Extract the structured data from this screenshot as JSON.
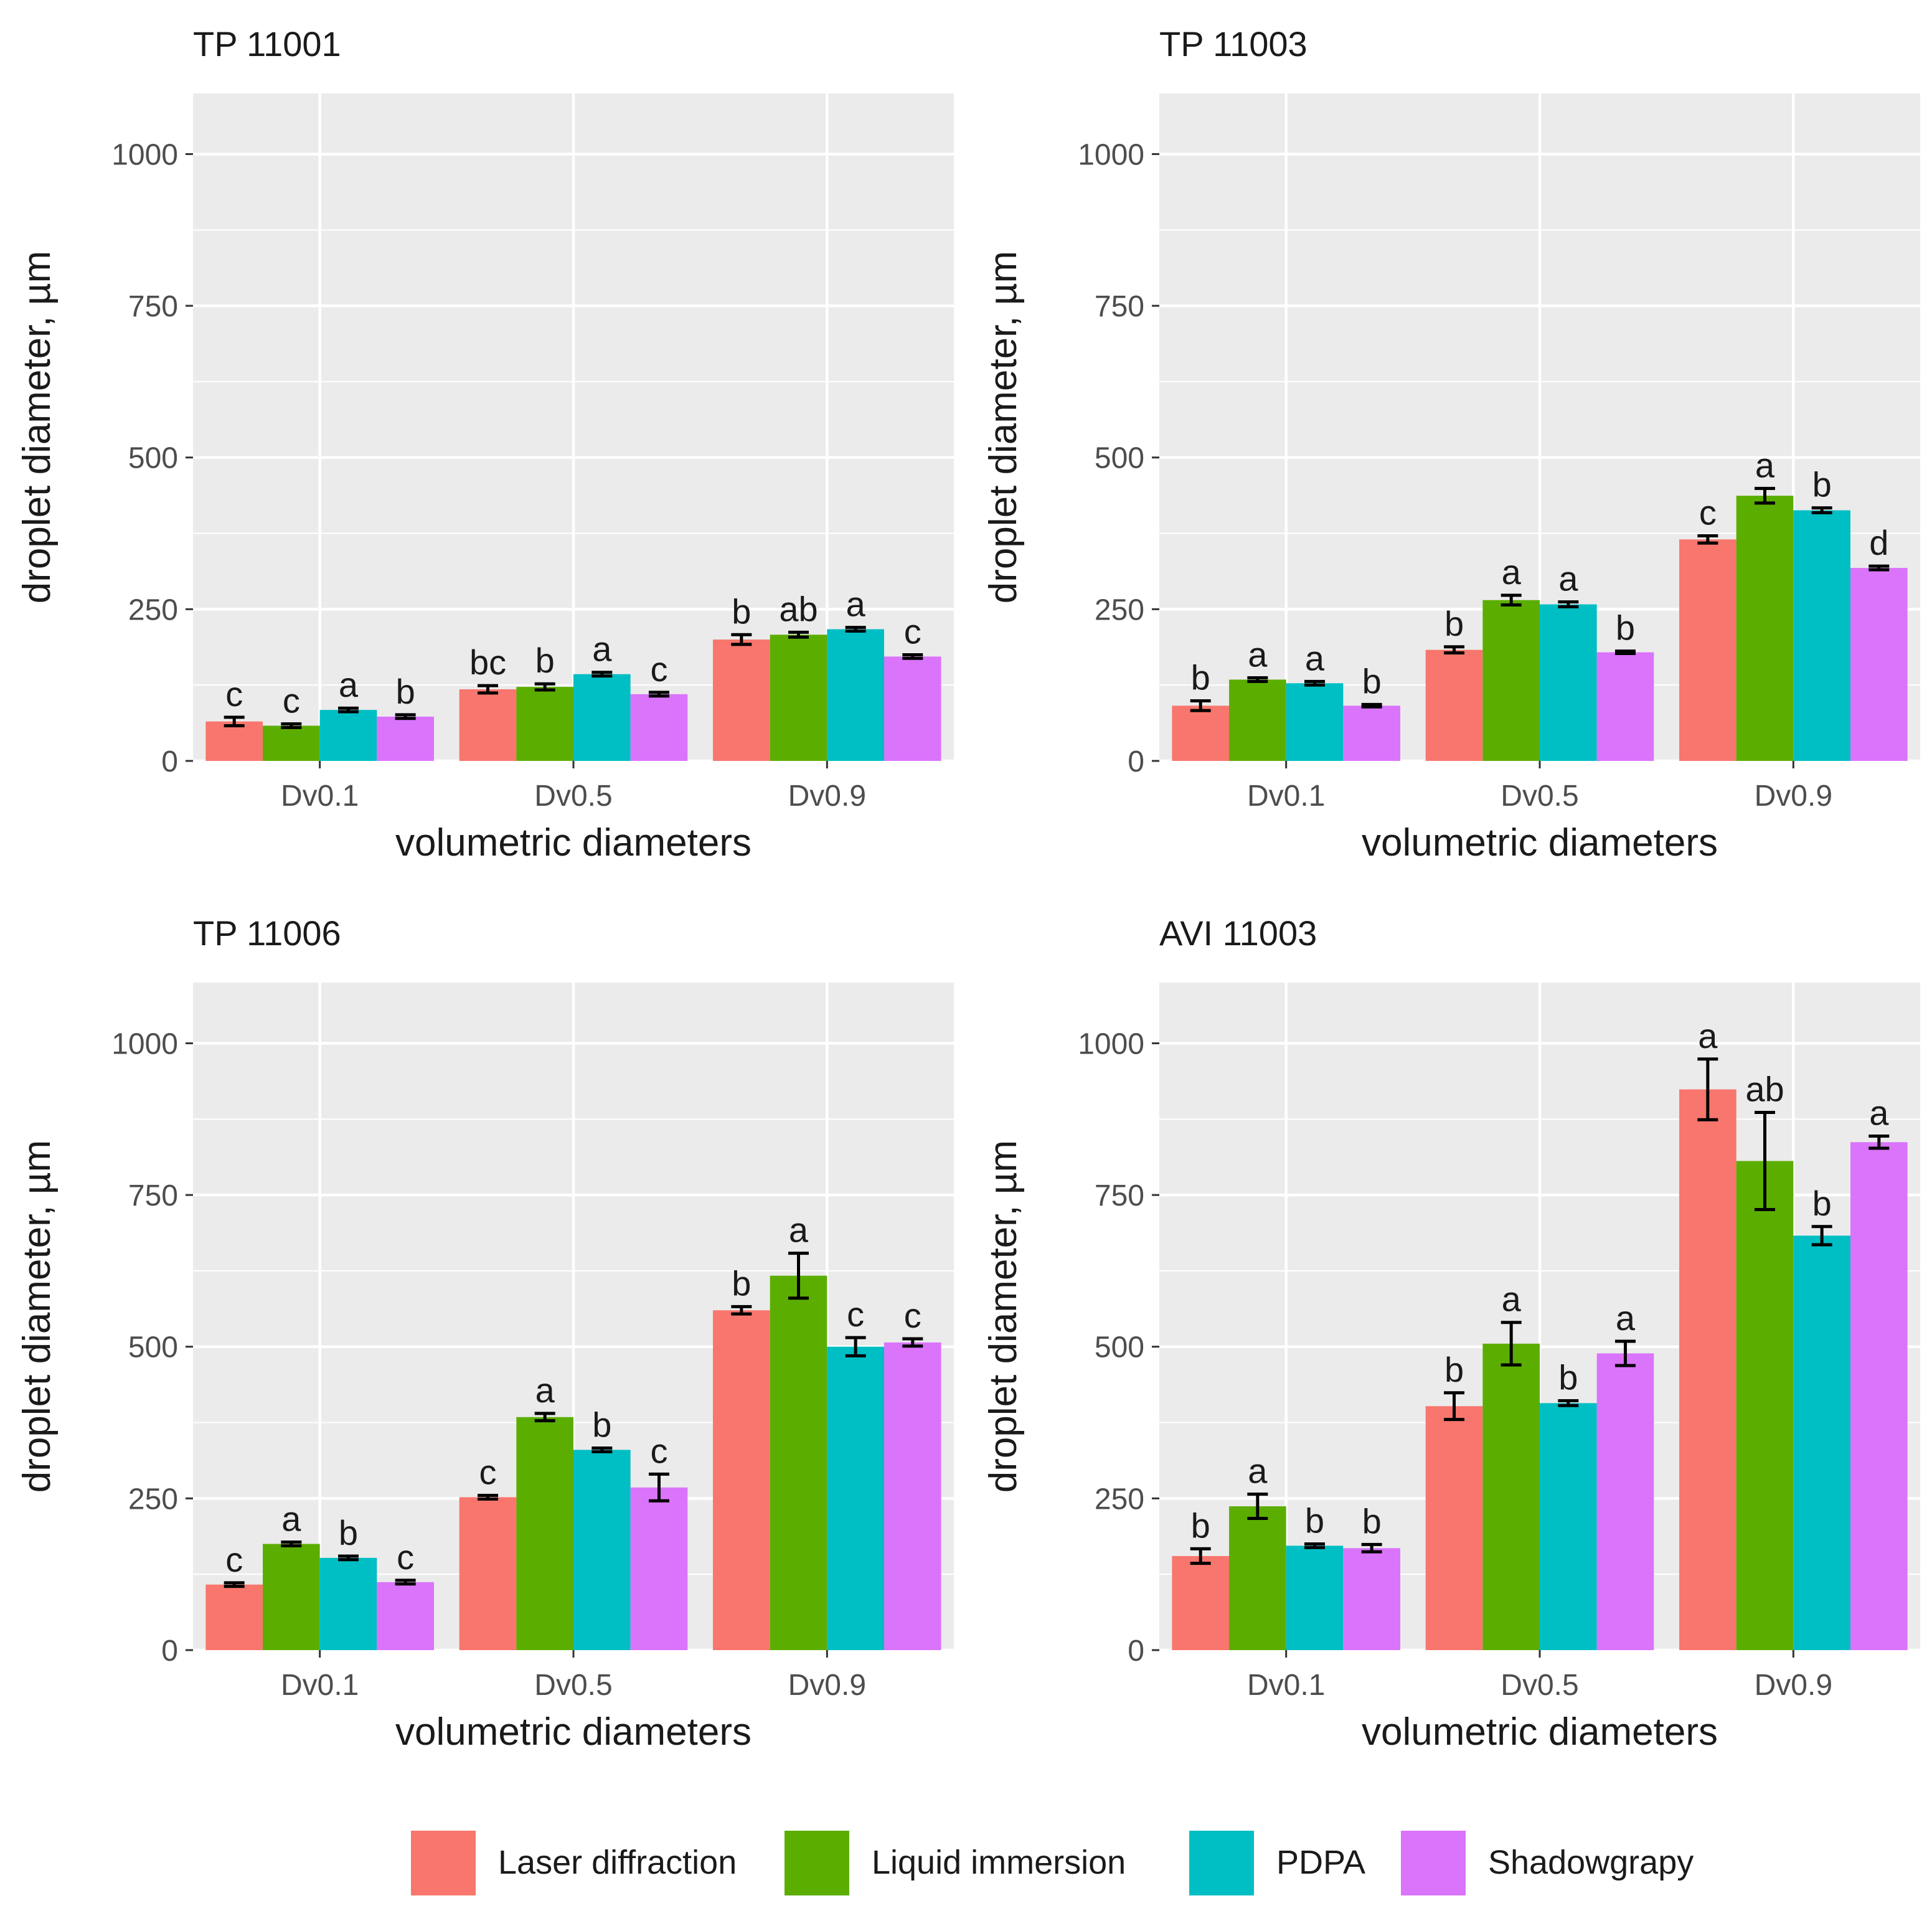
{
  "figure": {
    "colors": {
      "laser_diffraction": "#F8766D",
      "liquid_immersion": "#5BAE00",
      "pdpa": "#00BFC4",
      "shadowgrapy": "#DA74FB",
      "panel_bg": "#EBEBEB",
      "grid": "#FFFFFF",
      "text": "#1A1A1A",
      "tick_text": "#4D4D4D"
    }
  },
  "legend": {
    "items": [
      {
        "label": "Laser diffraction",
        "color": "#F8766D"
      },
      {
        "label": "Liquid immersion",
        "color": "#5BAE00"
      },
      {
        "label": "PDPA",
        "color": "#00BFC4"
      },
      {
        "label": "Shadowgrapy",
        "color": "#DA74FB"
      }
    ]
  },
  "chart_data": [
    {
      "type": "bar",
      "title": "TP 11001",
      "xlabel": "volumetric diameters",
      "ylabel": "droplet diameter, µm",
      "ylim": [
        0,
        1100
      ],
      "yticks": [
        0,
        250,
        500,
        750,
        1000
      ],
      "categories": [
        "Dv0.1",
        "Dv0.5",
        "Dv0.9"
      ],
      "series": [
        {
          "name": "Laser diffraction",
          "values": [
            65,
            118,
            200
          ],
          "errors": [
            7,
            6,
            8
          ],
          "letters": [
            "c",
            "bc",
            "b"
          ]
        },
        {
          "name": "Liquid immersion",
          "values": [
            58,
            122,
            208
          ],
          "errors": [
            3,
            5,
            4
          ],
          "letters": [
            "c",
            "b",
            "ab"
          ]
        },
        {
          "name": "PDPA",
          "values": [
            84,
            143,
            217
          ],
          "errors": [
            3,
            3,
            3
          ],
          "letters": [
            "a",
            "a",
            "a"
          ]
        },
        {
          "name": "Shadowgrapy",
          "values": [
            73,
            110,
            172
          ],
          "errors": [
            3,
            3,
            3
          ],
          "letters": [
            "b",
            "c",
            "c"
          ]
        }
      ]
    },
    {
      "type": "bar",
      "title": "TP 11003",
      "xlabel": "volumetric diameters",
      "ylabel": "droplet diameter, µm",
      "ylim": [
        0,
        1100
      ],
      "yticks": [
        0,
        250,
        500,
        750,
        1000
      ],
      "categories": [
        "Dv0.1",
        "Dv0.5",
        "Dv0.9"
      ],
      "series": [
        {
          "name": "Laser diffraction",
          "values": [
            91,
            183,
            365
          ],
          "errors": [
            8,
            5,
            6
          ],
          "letters": [
            "b",
            "b",
            "c"
          ]
        },
        {
          "name": "Liquid immersion",
          "values": [
            134,
            265,
            437
          ],
          "errors": [
            3,
            8,
            12
          ],
          "letters": [
            "a",
            "a",
            "a"
          ]
        },
        {
          "name": "PDPA",
          "values": [
            128,
            258,
            413
          ],
          "errors": [
            3,
            4,
            4
          ],
          "letters": [
            "a",
            "a",
            "b"
          ]
        },
        {
          "name": "Shadowgrapy",
          "values": [
            91,
            179,
            318
          ],
          "errors": [
            2,
            2,
            3
          ],
          "letters": [
            "b",
            "b",
            "d"
          ]
        }
      ]
    },
    {
      "type": "bar",
      "title": "TP 11006",
      "xlabel": "volumetric diameters",
      "ylabel": "droplet diameter, µm",
      "ylim": [
        0,
        1100
      ],
      "yticks": [
        0,
        250,
        500,
        750,
        1000
      ],
      "categories": [
        "Dv0.1",
        "Dv0.5",
        "Dv0.9"
      ],
      "series": [
        {
          "name": "Laser diffraction",
          "values": [
            108,
            252,
            560
          ],
          "errors": [
            3,
            3,
            6
          ],
          "letters": [
            "c",
            "c",
            "b"
          ]
        },
        {
          "name": "Liquid immersion",
          "values": [
            175,
            384,
            617
          ],
          "errors": [
            3,
            6,
            37
          ],
          "letters": [
            "a",
            "a",
            "a"
          ]
        },
        {
          "name": "PDPA",
          "values": [
            152,
            330,
            500
          ],
          "errors": [
            3,
            3,
            15
          ],
          "letters": [
            "b",
            "b",
            "c"
          ]
        },
        {
          "name": "Shadowgrapy",
          "values": [
            112,
            268,
            507
          ],
          "errors": [
            3,
            22,
            6
          ],
          "letters": [
            "c",
            "c",
            "c"
          ]
        }
      ]
    },
    {
      "type": "bar",
      "title": "AVI 11003",
      "xlabel": "volumetric diameters",
      "ylabel": "droplet diameter, µm",
      "ylim": [
        0,
        1100
      ],
      "yticks": [
        0,
        250,
        500,
        750,
        1000
      ],
      "categories": [
        "Dv0.1",
        "Dv0.5",
        "Dv0.9"
      ],
      "series": [
        {
          "name": "Laser diffraction",
          "values": [
            155,
            402,
            924
          ],
          "errors": [
            12,
            22,
            50
          ],
          "letters": [
            "b",
            "b",
            "a"
          ]
        },
        {
          "name": "Liquid immersion",
          "values": [
            237,
            505,
            806
          ],
          "errors": [
            20,
            35,
            80
          ],
          "letters": [
            "a",
            "a",
            "ab"
          ]
        },
        {
          "name": "PDPA",
          "values": [
            172,
            407,
            683
          ],
          "errors": [
            3,
            4,
            15
          ],
          "letters": [
            "b",
            "b",
            "b"
          ]
        },
        {
          "name": "Shadowgrapy",
          "values": [
            168,
            489,
            837
          ],
          "errors": [
            6,
            20,
            10
          ],
          "letters": [
            "b",
            "a",
            "a"
          ]
        }
      ]
    }
  ]
}
